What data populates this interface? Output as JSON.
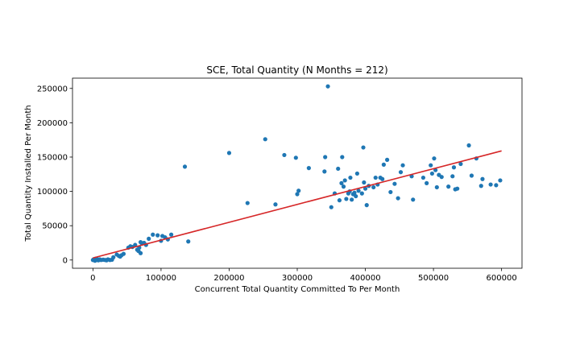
{
  "chart_data": {
    "type": "scatter",
    "title": "SCE, Total Quantity (N Months = 212)",
    "xlabel": "Concurrent Total Quantity Committed To Per Month",
    "ylabel": "Total Quantity Installed Per Month",
    "xlim": [
      -30000,
      630000
    ],
    "ylim": [
      -12000,
      265000
    ],
    "xticks": [
      0,
      100000,
      200000,
      300000,
      400000,
      500000,
      600000
    ],
    "yticks": [
      0,
      50000,
      100000,
      150000,
      200000,
      250000
    ],
    "point_color": "#1f77b4",
    "line_color": "#d62728",
    "grid": false,
    "series": [
      {
        "points": [
          [
            0,
            0
          ],
          [
            1000,
            1000
          ],
          [
            2000,
            500
          ],
          [
            3000,
            -1000
          ],
          [
            4000,
            2000
          ],
          [
            5000,
            0
          ],
          [
            6000,
            1500
          ],
          [
            8000,
            -500
          ],
          [
            10000,
            1000
          ],
          [
            12000,
            0
          ],
          [
            15000,
            500
          ],
          [
            18000,
            0
          ],
          [
            20000,
            -500
          ],
          [
            22000,
            1000
          ],
          [
            25000,
            0
          ],
          [
            28000,
            500
          ],
          [
            30000,
            4000
          ],
          [
            35000,
            8000
          ],
          [
            38000,
            6000
          ],
          [
            40000,
            5000
          ],
          [
            42000,
            7000
          ],
          [
            45000,
            9000
          ],
          [
            52000,
            18000
          ],
          [
            55000,
            20000
          ],
          [
            58000,
            19000
          ],
          [
            62000,
            22000
          ],
          [
            65000,
            15000
          ],
          [
            67000,
            13000
          ],
          [
            68000,
            18000
          ],
          [
            70000,
            10000
          ],
          [
            70000,
            26000
          ],
          [
            72000,
            24000
          ],
          [
            75000,
            25000
          ],
          [
            78000,
            22000
          ],
          [
            82000,
            31000
          ],
          [
            88000,
            37000
          ],
          [
            95000,
            36000
          ],
          [
            100000,
            28000
          ],
          [
            102000,
            35000
          ],
          [
            106000,
            33000
          ],
          [
            110000,
            30000
          ],
          [
            115000,
            37000
          ],
          [
            135000,
            136000
          ],
          [
            140000,
            27000
          ],
          [
            200000,
            156000
          ],
          [
            227000,
            83000
          ],
          [
            253000,
            176000
          ],
          [
            268000,
            81000
          ],
          [
            281000,
            153000
          ],
          [
            298000,
            149000
          ],
          [
            300000,
            96000
          ],
          [
            302000,
            101000
          ],
          [
            317000,
            134000
          ],
          [
            340000,
            129000
          ],
          [
            341000,
            150000
          ],
          [
            345000,
            253000
          ],
          [
            350000,
            77000
          ],
          [
            355000,
            97000
          ],
          [
            360000,
            133000
          ],
          [
            362000,
            87000
          ],
          [
            365000,
            112000
          ],
          [
            366000,
            150000
          ],
          [
            368000,
            107000
          ],
          [
            370000,
            116000
          ],
          [
            372000,
            89000
          ],
          [
            375000,
            97000
          ],
          [
            377000,
            100000
          ],
          [
            378000,
            120000
          ],
          [
            380000,
            88000
          ],
          [
            382000,
            96000
          ],
          [
            384000,
            98000
          ],
          [
            386000,
            93000
          ],
          [
            388000,
            126000
          ],
          [
            390000,
            101000
          ],
          [
            395000,
            97000
          ],
          [
            397000,
            164000
          ],
          [
            398000,
            113000
          ],
          [
            400000,
            104000
          ],
          [
            402000,
            80000
          ],
          [
            405000,
            108000
          ],
          [
            412000,
            106000
          ],
          [
            415000,
            120000
          ],
          [
            418000,
            110000
          ],
          [
            422000,
            120000
          ],
          [
            425000,
            118000
          ],
          [
            427000,
            139000
          ],
          [
            432000,
            146000
          ],
          [
            437000,
            99000
          ],
          [
            443000,
            111000
          ],
          [
            448000,
            90000
          ],
          [
            452000,
            128000
          ],
          [
            455000,
            138000
          ],
          [
            468000,
            122000
          ],
          [
            470000,
            88000
          ],
          [
            485000,
            120000
          ],
          [
            490000,
            112000
          ],
          [
            496000,
            138000
          ],
          [
            498000,
            126000
          ],
          [
            501000,
            148000
          ],
          [
            503000,
            131000
          ],
          [
            505000,
            106000
          ],
          [
            508000,
            124000
          ],
          [
            512000,
            121000
          ],
          [
            522000,
            107000
          ],
          [
            528000,
            122000
          ],
          [
            530000,
            135000
          ],
          [
            532000,
            103000
          ],
          [
            535000,
            104000
          ],
          [
            540000,
            140000
          ],
          [
            552000,
            167000
          ],
          [
            556000,
            123000
          ],
          [
            563000,
            148000
          ],
          [
            570000,
            108000
          ],
          [
            572000,
            118000
          ],
          [
            584000,
            110000
          ],
          [
            592000,
            109000
          ],
          [
            598000,
            116000
          ]
        ]
      }
    ],
    "trendline": {
      "x": [
        0,
        600000
      ],
      "y": [
        3000,
        159000
      ]
    }
  }
}
